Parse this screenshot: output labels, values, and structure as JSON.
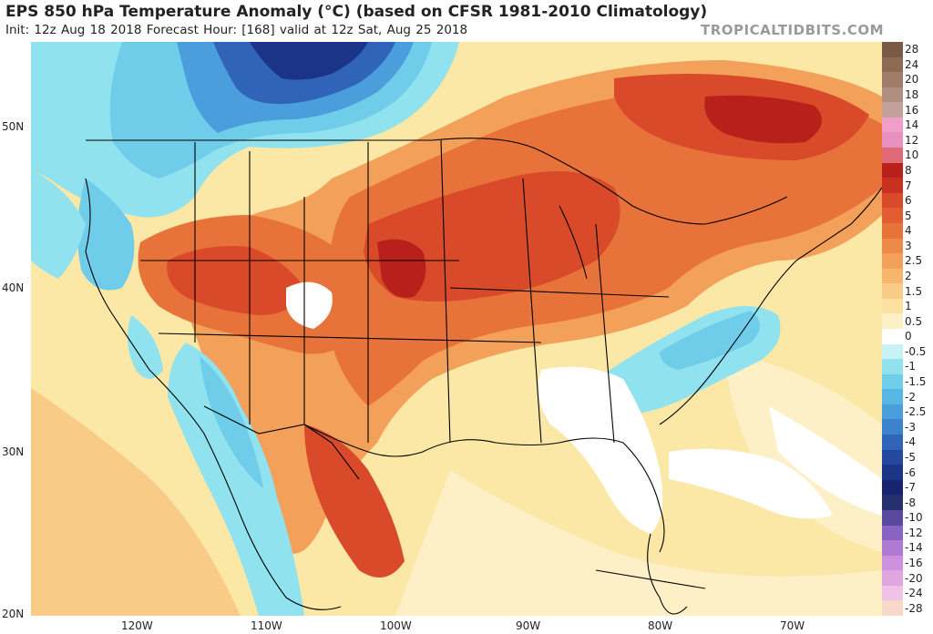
{
  "header": {
    "title": "EPS 850 hPa Temperature Anomaly (°C) (based on CFSR 1981-2010 Climatology)",
    "subtitle": "Init: 12z Aug 18 2018   Forecast Hour: [168]   valid at 12z Sat, Aug 25 2018",
    "brand": "TROPICALTIDBITS.COM"
  },
  "axes": {
    "lat_labels": [
      "50N",
      "40N",
      "30N",
      "20N"
    ],
    "lon_labels": [
      "120W",
      "110W",
      "100W",
      "90W",
      "80W",
      "70W"
    ]
  },
  "colorbar": {
    "labels": [
      "28",
      "24",
      "20",
      "18",
      "16",
      "14",
      "12",
      "10",
      "8",
      "7",
      "6",
      "5",
      "4",
      "3",
      "2.5",
      "2",
      "1.5",
      "1",
      "0.5",
      "0",
      "-0.5",
      "-1",
      "-1.5",
      "-2",
      "-2.5",
      "-3",
      "-4",
      "-5",
      "-6",
      "-7",
      "-8",
      "-10",
      "-12",
      "-14",
      "-16",
      "-20",
      "-24",
      "-28"
    ],
    "colors": [
      "#7a5a44",
      "#8e6a55",
      "#a07c68",
      "#b08e80",
      "#c2a19a",
      "#f0a0c8",
      "#e890c0",
      "#e06a78",
      "#b8201c",
      "#c83020",
      "#d84a2a",
      "#e25e32",
      "#e8733a",
      "#ee8a48",
      "#f2a05a",
      "#f6b66e",
      "#f8cc86",
      "#fbe0a0",
      "#fdf0c6",
      "#ffffff",
      "#c8f2f4",
      "#8fe2ee",
      "#6fcdea",
      "#56b6e4",
      "#4a9edc",
      "#3c82cc",
      "#2f64b8",
      "#2448a0",
      "#1c3488",
      "#162472",
      "#24306e",
      "#5a4a9e",
      "#8a62c2",
      "#b07ad4",
      "#cc90dc",
      "#e0a6e0",
      "#f0c2e8",
      "#f8d8c8"
    ]
  },
  "map_colors": {
    "ocean_base": "#fbe7a6",
    "deep_red": "#b8201c",
    "red": "#d84a2a",
    "orange_red": "#e8733a",
    "orange": "#f2a05a",
    "light_orange": "#f8cc86",
    "pale_yellow": "#fdf0c6",
    "white": "#ffffff",
    "light_cyan": "#c8f2f4",
    "cyan": "#8fe2ee",
    "light_blue": "#6fcdea",
    "blue": "#4a9edc",
    "mid_blue": "#3c82cc",
    "dark_blue": "#2448a0",
    "navy": "#1c3488",
    "border": "#000000"
  }
}
